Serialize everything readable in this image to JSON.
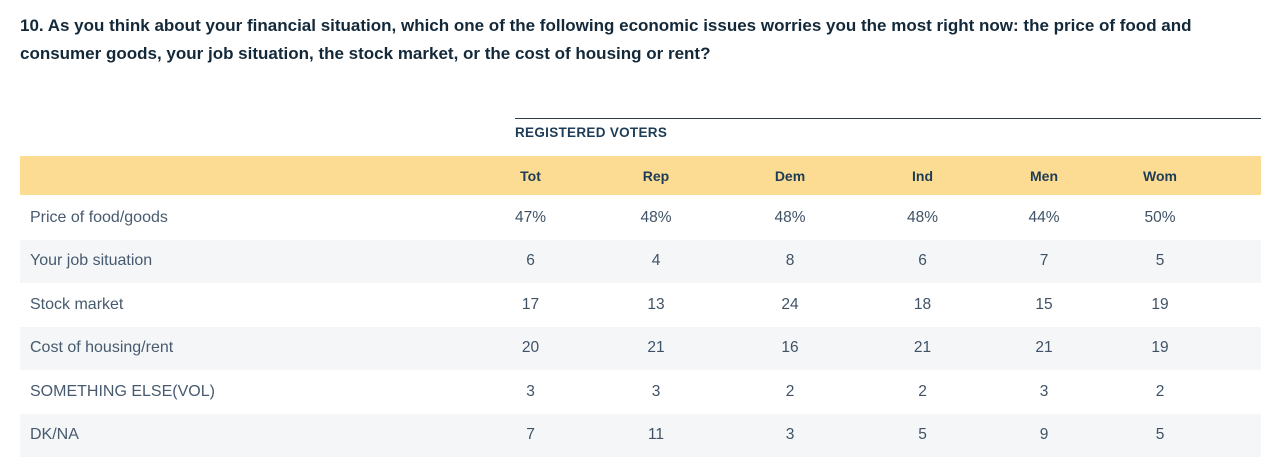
{
  "question": {
    "text": "10. As you think about your financial situation, which one of the following economic issues worries you the most right now: the price of food and consumer goods, your job situation, the stock market, or the cost of housing or rent?"
  },
  "table": {
    "group_header": "REGISTERED VOTERS",
    "columns": [
      "Tot",
      "Rep",
      "Dem",
      "Ind",
      "Men",
      "Wom"
    ],
    "rows": [
      {
        "label": "Price of food/goods",
        "values": [
          "47%",
          "48%",
          "48%",
          "48%",
          "44%",
          "50%"
        ]
      },
      {
        "label": "Your job situation",
        "values": [
          "6",
          "4",
          "8",
          "6",
          "7",
          "5"
        ]
      },
      {
        "label": "Stock market",
        "values": [
          "17",
          "13",
          "24",
          "18",
          "15",
          "19"
        ]
      },
      {
        "label": "Cost of housing/rent",
        "values": [
          "20",
          "21",
          "16",
          "21",
          "21",
          "19"
        ]
      },
      {
        "label": "SOMETHING ELSE(VOL)",
        "values": [
          "3",
          "3",
          "2",
          "2",
          "3",
          "2"
        ]
      },
      {
        "label": "DK/NA",
        "values": [
          "7",
          "11",
          "3",
          "5",
          "9",
          "5"
        ]
      }
    ]
  },
  "colors": {
    "header_band": "#fcdc92",
    "row_stripe": "#f4f6f8",
    "question_text": "#13293a",
    "header_text": "#1e3c55",
    "data_text": "#3f5265",
    "divider_line": "#2e3d4c"
  },
  "chart_data": {
    "type": "table",
    "title": "10. As you think about your financial situation, which one of the following economic issues worries you the most right now: the price of food and consumer goods, your job situation, the stock market, or the cost of housing or rent?",
    "group_header": "REGISTERED VOTERS",
    "columns": [
      "Tot",
      "Rep",
      "Dem",
      "Ind",
      "Men",
      "Wom"
    ],
    "categories": [
      "Price of food/goods",
      "Your job situation",
      "Stock market",
      "Cost of housing/rent",
      "SOMETHING ELSE(VOL)",
      "DK/NA"
    ],
    "series": [
      {
        "name": "Tot",
        "values": [
          47,
          6,
          17,
          20,
          3,
          7
        ]
      },
      {
        "name": "Rep",
        "values": [
          48,
          4,
          13,
          21,
          3,
          11
        ]
      },
      {
        "name": "Dem",
        "values": [
          48,
          8,
          24,
          16,
          2,
          3
        ]
      },
      {
        "name": "Ind",
        "values": [
          48,
          6,
          18,
          21,
          2,
          5
        ]
      },
      {
        "name": "Men",
        "values": [
          44,
          7,
          15,
          21,
          3,
          9
        ]
      },
      {
        "name": "Wom",
        "values": [
          50,
          5,
          19,
          19,
          2,
          5
        ]
      }
    ],
    "values_unit": "percent of registered voters"
  }
}
